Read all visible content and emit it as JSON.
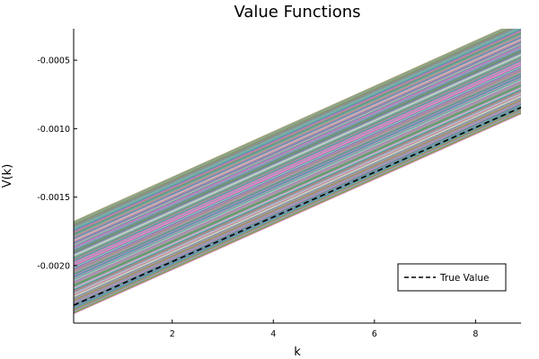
{
  "chart_data": {
    "type": "line",
    "title": "Value Functions",
    "xlabel": "k",
    "ylabel": "V(k)",
    "xlim": [
      0.05,
      8.9
    ],
    "ylim": [
      -0.00242,
      -0.00027
    ],
    "x_ticks": [
      {
        "value": 2,
        "label": "2"
      },
      {
        "value": 4,
        "label": "4"
      },
      {
        "value": 6,
        "label": "6"
      },
      {
        "value": 8,
        "label": "8"
      }
    ],
    "y_ticks": [
      {
        "value": -0.0005,
        "label": "-0.0005"
      },
      {
        "value": -0.001,
        "label": "-0.0010"
      },
      {
        "value": -0.0015,
        "label": "-0.0015"
      },
      {
        "value": -0.002,
        "label": "-0.0020"
      }
    ],
    "grid": false,
    "legend": {
      "placement": "bottom-right",
      "entries": [
        "True Value"
      ]
    },
    "iterate_bundle": {
      "count": 120,
      "x": [
        0.05,
        8.9
      ],
      "y_start_range": [
        -0.00235,
        -0.00168
      ],
      "y_end_range": [
        -0.00089,
        -0.00021
      ],
      "palette": [
        "#8c8c8c",
        "#9e9a6e",
        "#5fb0a8",
        "#3a9a8e",
        "#b08ac0",
        "#e080c8",
        "#7a9a3a",
        "#3a8aa8",
        "#c07ab8",
        "#a0a0a0",
        "#6fae9a",
        "#d0d0d0"
      ]
    },
    "series": [
      {
        "name": "True Value",
        "style": "dashed",
        "color": "#000000",
        "x": [
          0.05,
          8.9
        ],
        "y": [
          -0.00229,
          -0.000845
        ]
      }
    ]
  }
}
